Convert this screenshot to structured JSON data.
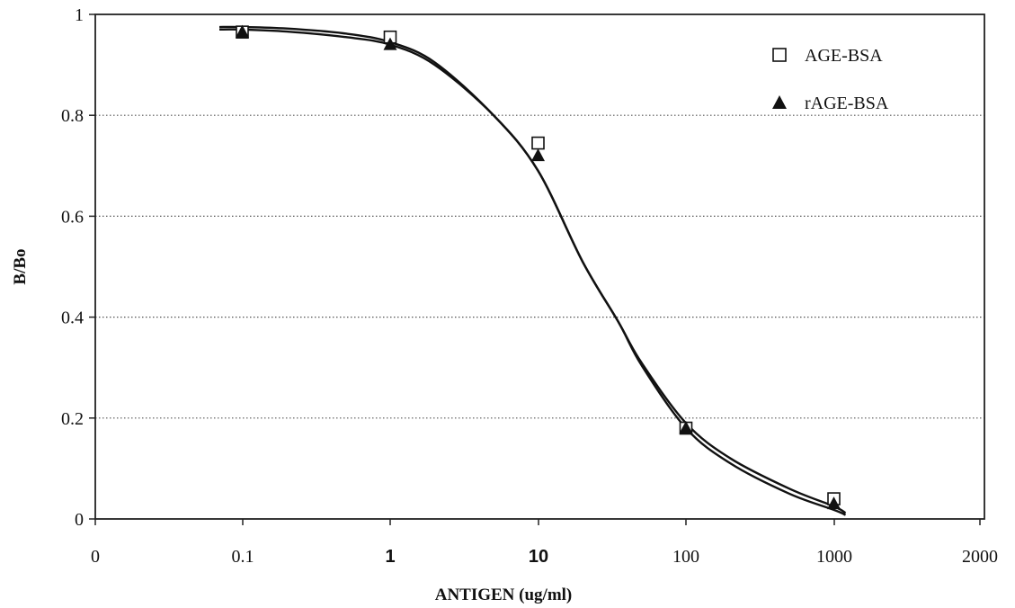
{
  "chart_data": {
    "type": "line",
    "title": "",
    "xlabel": "ANTIGEN (ug/ml)",
    "ylabel": "B/Bo",
    "x_scale": "log",
    "x_ticks": [
      "0",
      "0.1",
      "1",
      "10",
      "100",
      "1000",
      "2000"
    ],
    "y_ticks": [
      "0",
      "0.2",
      "0.4",
      "0.6",
      "0.8",
      "1"
    ],
    "ylim": [
      0,
      1
    ],
    "grid": "horizontal dotted",
    "legend_position": "top-right",
    "series": [
      {
        "name": "AGE-BSA",
        "marker": "open-square",
        "points": [
          {
            "x": 0.1,
            "y": 0.965
          },
          {
            "x": 1,
            "y": 0.955
          },
          {
            "x": 10,
            "y": 0.745
          },
          {
            "x": 100,
            "y": 0.18
          },
          {
            "x": 1000,
            "y": 0.04
          }
        ]
      },
      {
        "name": "rAGE-BSA",
        "marker": "filled-triangle",
        "points": [
          {
            "x": 0.1,
            "y": 0.965
          },
          {
            "x": 1,
            "y": 0.94
          },
          {
            "x": 10,
            "y": 0.72
          },
          {
            "x": 100,
            "y": 0.18
          },
          {
            "x": 1000,
            "y": 0.03
          }
        ]
      }
    ],
    "fit_curves": [
      {
        "x": [
          0.07,
          0.1,
          0.2,
          0.5,
          1,
          2,
          5,
          10,
          20,
          35,
          50,
          100,
          200,
          500,
          1000,
          1200
        ],
        "y": [
          0.975,
          0.975,
          0.972,
          0.962,
          0.945,
          0.905,
          0.8,
          0.69,
          0.51,
          0.39,
          0.31,
          0.19,
          0.12,
          0.06,
          0.025,
          0.012
        ]
      },
      {
        "x": [
          0.07,
          0.1,
          0.2,
          0.5,
          1,
          2,
          5,
          10,
          20,
          35,
          50,
          100,
          200,
          500,
          1000,
          1200
        ],
        "y": [
          0.97,
          0.97,
          0.966,
          0.955,
          0.94,
          0.9,
          0.8,
          0.69,
          0.51,
          0.39,
          0.305,
          0.18,
          0.11,
          0.05,
          0.018,
          0.008
        ]
      }
    ]
  }
}
